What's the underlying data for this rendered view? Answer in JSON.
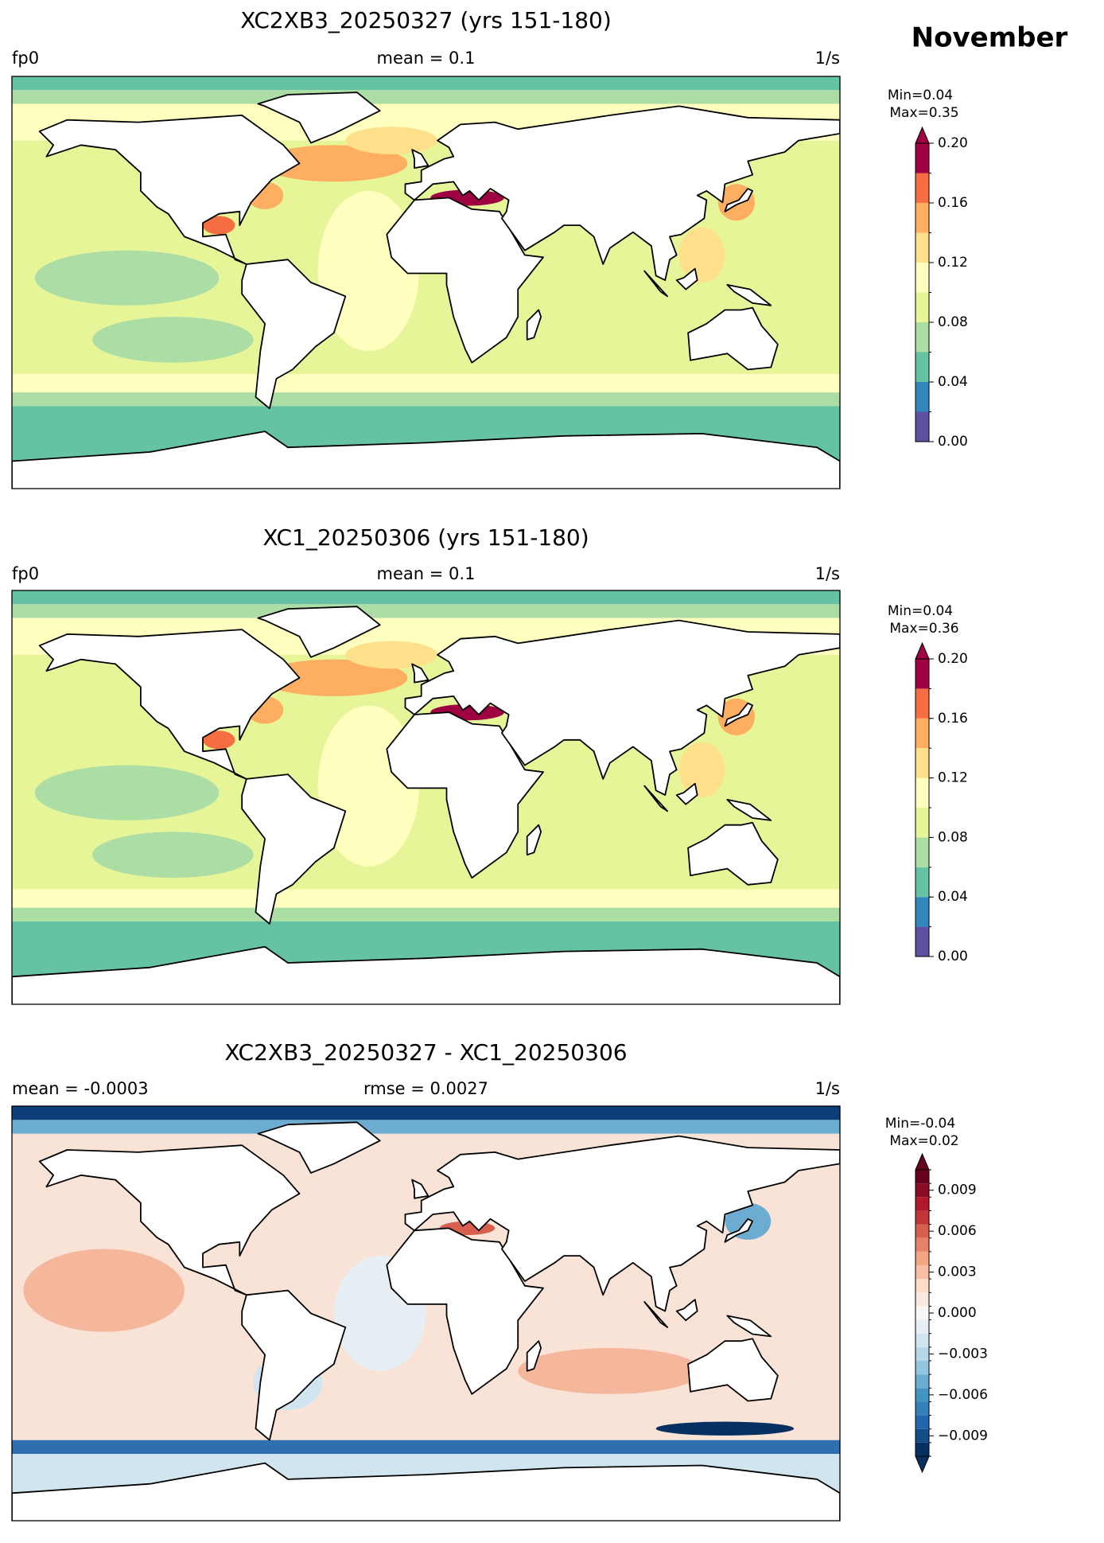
{
  "figure_title": "November",
  "chart_data": [
    {
      "type": "map",
      "title": "XC2XB3_20250327 (yrs 151-180)",
      "left_label": "fp0",
      "center_label": "mean = 0.1",
      "right_label": "1/s",
      "min_label": "Min=0.04",
      "max_label": "Max=0.35",
      "colorbar": {
        "levels": [
          0,
          0.02,
          0.04,
          0.06,
          0.08,
          0.1,
          0.12,
          0.14,
          0.16,
          0.18,
          0.2
        ],
        "colors": [
          "#5e4fa2",
          "#3288bd",
          "#66c2a5",
          "#abdda4",
          "#e6f598",
          "#ffffbf",
          "#fee08b",
          "#fdae61",
          "#f46d43",
          "#9e0142"
        ],
        "extend": "max",
        "ticks": [
          {
            "value": 0,
            "label": "0.00"
          },
          0.04,
          0.08,
          0.12,
          0.16,
          {
            "value": 0.2,
            "label": "0.20"
          }
        ]
      }
    },
    {
      "type": "map",
      "title": "XC1_20250306 (yrs 151-180)",
      "left_label": "fp0",
      "center_label": "mean = 0.1",
      "right_label": "1/s",
      "min_label": "Min=0.04",
      "max_label": "Max=0.36",
      "colorbar": {
        "levels": [
          0,
          0.02,
          0.04,
          0.06,
          0.08,
          0.1,
          0.12,
          0.14,
          0.16,
          0.18,
          0.2
        ],
        "colors": [
          "#5e4fa2",
          "#3288bd",
          "#66c2a5",
          "#abdda4",
          "#e6f598",
          "#ffffbf",
          "#fee08b",
          "#fdae61",
          "#f46d43",
          "#9e0142"
        ],
        "extend": "max",
        "ticks": [
          {
            "value": 0,
            "label": "0.00"
          },
          0.04,
          0.08,
          0.12,
          0.16,
          {
            "value": 0.2,
            "label": "0.20"
          }
        ]
      }
    },
    {
      "type": "diffmap",
      "title": "XC2XB3_20250327 - XC1_20250306",
      "left_label": "mean = -0.0003",
      "center_label": "rmse = 0.0027",
      "right_label": "1/s",
      "min_label": "Min=-0.04",
      "max_label": "Max=0.02",
      "colorbar": {
        "levels": [
          -0.0105,
          -0.0095,
          -0.0085,
          -0.0075,
          -0.0065,
          -0.0055,
          -0.0045,
          -0.0035,
          -0.0025,
          -0.0015,
          -0.0005,
          0.0005,
          0.0015,
          0.0025,
          0.0035,
          0.0045,
          0.0055,
          0.0065,
          0.0075,
          0.0085,
          0.0095,
          0.0105
        ],
        "colors": [
          "#053061",
          "#134c87",
          "#2166ac",
          "#3480b9",
          "#4393c3",
          "#6bacd0",
          "#92c5de",
          "#b5d7e8",
          "#d1e5f0",
          "#e7eff4",
          "#f7f7f7",
          "#f9eae1",
          "#fddbc7",
          "#f8bfa4",
          "#f4a582",
          "#e58267",
          "#d6604d",
          "#c13639",
          "#b2182b",
          "#8a0b24",
          "#67001f"
        ],
        "extend": "both",
        "ticks": [
          {
            "value": -0.009,
            "label": "−0.009"
          },
          {
            "value": -0.006,
            "label": "−0.006"
          },
          {
            "value": -0.003,
            "label": "−0.003"
          },
          {
            "value": 0,
            "label": "0.000"
          },
          0.003,
          0.006,
          0.009
        ]
      }
    }
  ]
}
